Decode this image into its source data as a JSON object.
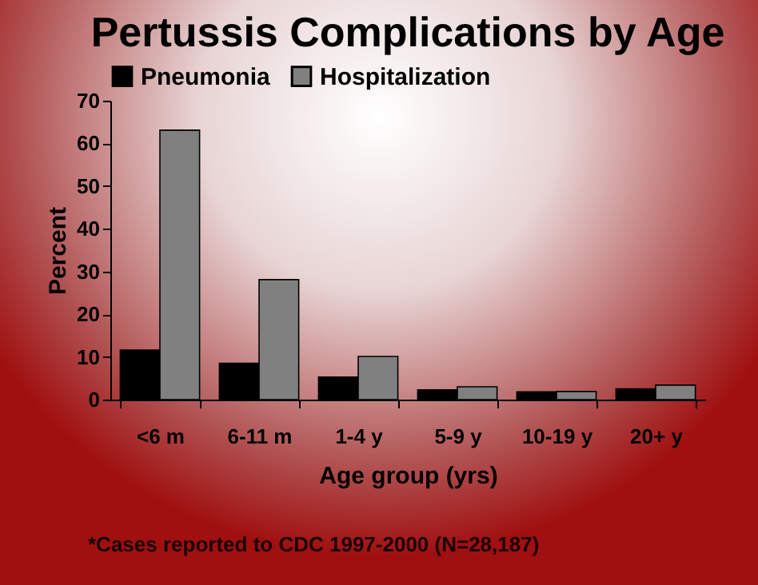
{
  "chart_data": {
    "type": "bar",
    "title": "Pertussis Complications by Age",
    "xlabel": "Age group (yrs)",
    "ylabel": "Percent",
    "annotations": [
      "*Cases reported to CDC 1997-2000 (N=28,187)"
    ],
    "categories": [
      "<6 m",
      "6-11 m",
      "1-4 y",
      "5-9 y",
      "10-19 y",
      "20+ y"
    ],
    "series": [
      {
        "name": "Pneumonia",
        "color": "#000000",
        "values": [
          11.6,
          8.5,
          5.3,
          2.3,
          1.8,
          2.5
        ]
      },
      {
        "name": "Hospitalization",
        "color": "#808080",
        "values": [
          63.1,
          28.1,
          10.1,
          3.0,
          1.9,
          3.4
        ]
      }
    ],
    "ylim": [
      0,
      70
    ],
    "yticks": [
      0,
      10,
      20,
      30,
      40,
      50,
      60,
      70
    ],
    "grid": false,
    "legend": "top"
  }
}
